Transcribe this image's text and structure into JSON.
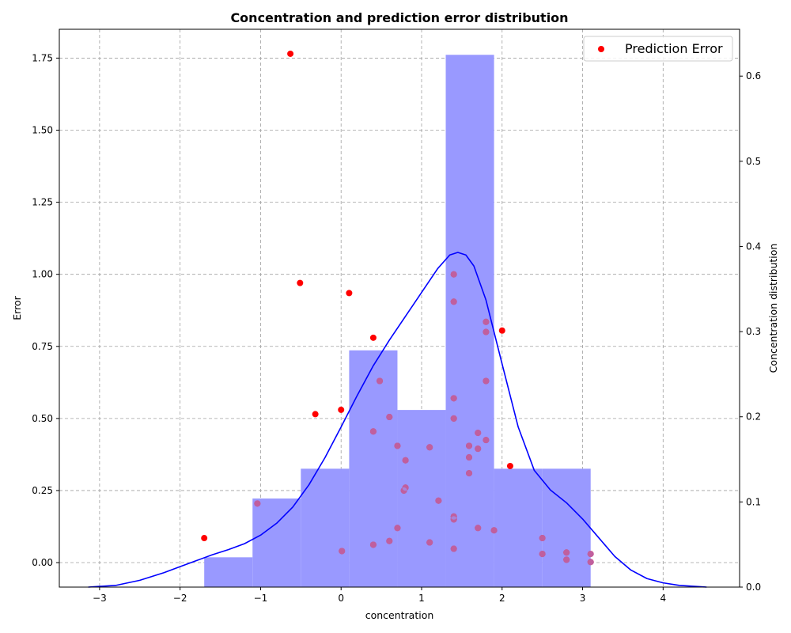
{
  "chart_data": {
    "type": "scatter",
    "title": "Concentration and prediction error distribution",
    "xlabel": "concentration",
    "ylabel": "Error",
    "y2label": "Concentration distribution",
    "xlim": [
      -3.5,
      4.95
    ],
    "ylim": [
      -0.085,
      1.85
    ],
    "y2lim": [
      0,
      0.655
    ],
    "xticks": [
      -3,
      -2,
      -1,
      0,
      1,
      2,
      3,
      4
    ],
    "yticks": [
      0.0,
      0.25,
      0.5,
      0.75,
      1.0,
      1.25,
      1.5,
      1.75
    ],
    "y2ticks": [
      0.0,
      0.1,
      0.2,
      0.3,
      0.4,
      0.5,
      0.6
    ],
    "grid": true,
    "legend_position": "top-right",
    "colors": {
      "scatter": "#ff0000",
      "histogram": "#9999ff",
      "kde": "#0000ff",
      "grid": "#a0a0a0"
    },
    "scatter_series": {
      "name": "Prediction Error",
      "points": [
        [
          -0.63,
          1.765
        ],
        [
          -0.51,
          0.97
        ],
        [
          0.1,
          0.935
        ],
        [
          0.4,
          0.78
        ],
        [
          -0.32,
          0.515
        ],
        [
          0.0,
          0.53
        ],
        [
          -1.7,
          0.085
        ],
        [
          -1.04,
          0.205
        ],
        [
          0.01,
          0.04
        ],
        [
          0.4,
          0.455
        ],
        [
          0.48,
          0.63
        ],
        [
          0.6,
          0.505
        ],
        [
          0.7,
          0.405
        ],
        [
          0.8,
          0.355
        ],
        [
          0.78,
          0.25
        ],
        [
          0.8,
          0.26
        ],
        [
          0.7,
          0.12
        ],
        [
          0.6,
          0.075
        ],
        [
          0.4,
          0.062
        ],
        [
          1.1,
          0.4
        ],
        [
          1.1,
          0.07
        ],
        [
          1.21,
          0.215
        ],
        [
          1.4,
          1.0
        ],
        [
          1.4,
          0.905
        ],
        [
          1.4,
          0.57
        ],
        [
          1.4,
          0.5
        ],
        [
          1.4,
          0.16
        ],
        [
          1.4,
          0.15
        ],
        [
          1.4,
          0.048
        ],
        [
          1.59,
          0.405
        ],
        [
          1.59,
          0.365
        ],
        [
          1.59,
          0.31
        ],
        [
          1.7,
          0.45
        ],
        [
          1.7,
          0.395
        ],
        [
          1.7,
          0.12
        ],
        [
          1.8,
          0.835
        ],
        [
          1.8,
          0.8
        ],
        [
          1.8,
          0.63
        ],
        [
          1.8,
          0.425
        ],
        [
          1.9,
          0.112
        ],
        [
          2.0,
          0.805
        ],
        [
          2.1,
          0.335
        ],
        [
          2.5,
          0.085
        ],
        [
          2.5,
          0.03
        ],
        [
          2.8,
          0.035
        ],
        [
          2.8,
          0.01
        ],
        [
          3.1,
          0.03
        ],
        [
          3.1,
          0.002
        ]
      ]
    },
    "histogram": {
      "bin_edges": [
        -1.7,
        -1.1,
        -0.5,
        0.1,
        0.7,
        1.3,
        1.9,
        2.5,
        3.1
      ],
      "densities": [
        0.035,
        0.104,
        0.139,
        0.278,
        0.208,
        0.625,
        0.139,
        0.139
      ]
    },
    "kde": {
      "x": [
        -3.14,
        -2.8,
        -2.5,
        -2.2,
        -2.0,
        -1.8,
        -1.6,
        -1.4,
        -1.2,
        -1.0,
        -0.8,
        -0.6,
        -0.4,
        -0.2,
        0.0,
        0.2,
        0.4,
        0.6,
        0.8,
        1.0,
        1.2,
        1.35,
        1.45,
        1.55,
        1.65,
        1.8,
        2.0,
        2.2,
        2.4,
        2.6,
        2.8,
        3.0,
        3.2,
        3.4,
        3.6,
        3.8,
        4.0,
        4.2,
        4.54
      ],
      "y": [
        0.0,
        0.002,
        0.008,
        0.017,
        0.024,
        0.031,
        0.038,
        0.044,
        0.051,
        0.061,
        0.075,
        0.094,
        0.12,
        0.152,
        0.188,
        0.225,
        0.26,
        0.29,
        0.318,
        0.346,
        0.374,
        0.39,
        0.393,
        0.39,
        0.377,
        0.337,
        0.262,
        0.188,
        0.137,
        0.114,
        0.099,
        0.08,
        0.058,
        0.036,
        0.02,
        0.01,
        0.005,
        0.002,
        0.0
      ]
    }
  }
}
